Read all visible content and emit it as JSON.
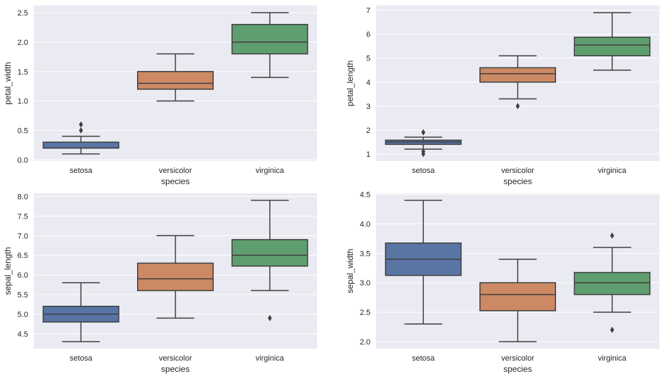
{
  "chart_data": [
    {
      "type": "box",
      "xlabel": "species",
      "ylabel": "petal_width",
      "categories": [
        "setosa",
        "versicolor",
        "virginica"
      ],
      "ylim": [
        -0.02,
        2.62
      ],
      "yticks": [
        "0.0",
        "0.5",
        "1.0",
        "1.5",
        "2.0",
        "2.5"
      ],
      "grid": true,
      "boxes": [
        {
          "whisker_low": 0.1,
          "q1": 0.2,
          "median": 0.2,
          "q3": 0.3,
          "whisker_high": 0.4,
          "outliers": [
            0.5,
            0.6
          ]
        },
        {
          "whisker_low": 1.0,
          "q1": 1.2,
          "median": 1.3,
          "q3": 1.5,
          "whisker_high": 1.8,
          "outliers": []
        },
        {
          "whisker_low": 1.4,
          "q1": 1.8,
          "median": 2.0,
          "q3": 2.3,
          "whisker_high": 2.5,
          "outliers": []
        }
      ]
    },
    {
      "type": "box",
      "xlabel": "species",
      "ylabel": "petal_length",
      "categories": [
        "setosa",
        "versicolor",
        "virginica"
      ],
      "ylim": [
        0.705,
        7.195
      ],
      "yticks": [
        "1",
        "2",
        "3",
        "4",
        "5",
        "6",
        "7"
      ],
      "grid": true,
      "boxes": [
        {
          "whisker_low": 1.2,
          "q1": 1.4,
          "median": 1.5,
          "q3": 1.575,
          "whisker_high": 1.7,
          "outliers": [
            1.0,
            1.1,
            1.9
          ]
        },
        {
          "whisker_low": 3.3,
          "q1": 4.0,
          "median": 4.35,
          "q3": 4.6,
          "whisker_high": 5.1,
          "outliers": [
            3.0
          ]
        },
        {
          "whisker_low": 4.5,
          "q1": 5.1,
          "median": 5.55,
          "q3": 5.875,
          "whisker_high": 6.9,
          "outliers": []
        }
      ]
    },
    {
      "type": "box",
      "xlabel": "species",
      "ylabel": "sepal_length",
      "categories": [
        "setosa",
        "versicolor",
        "virginica"
      ],
      "ylim": [
        4.12,
        8.08
      ],
      "yticks": [
        "4.5",
        "5.0",
        "5.5",
        "6.0",
        "6.5",
        "7.0",
        "7.5",
        "8.0"
      ],
      "grid": true,
      "boxes": [
        {
          "whisker_low": 4.3,
          "q1": 4.8,
          "median": 5.0,
          "q3": 5.2,
          "whisker_high": 5.8,
          "outliers": []
        },
        {
          "whisker_low": 4.9,
          "q1": 5.6,
          "median": 5.9,
          "q3": 6.3,
          "whisker_high": 7.0,
          "outliers": []
        },
        {
          "whisker_low": 5.6,
          "q1": 6.225,
          "median": 6.5,
          "q3": 6.9,
          "whisker_high": 7.9,
          "outliers": [
            4.9
          ]
        }
      ]
    },
    {
      "type": "box",
      "xlabel": "species",
      "ylabel": "sepal_width",
      "categories": [
        "setosa",
        "versicolor",
        "virginica"
      ],
      "ylim": [
        1.88,
        4.52
      ],
      "yticks": [
        "2.0",
        "2.5",
        "3.0",
        "3.5",
        "4.0",
        "4.5"
      ],
      "grid": true,
      "boxes": [
        {
          "whisker_low": 2.3,
          "q1": 3.125,
          "median": 3.4,
          "q3": 3.675,
          "whisker_high": 4.4,
          "outliers": []
        },
        {
          "whisker_low": 2.0,
          "q1": 2.525,
          "median": 2.8,
          "q3": 3.0,
          "whisker_high": 3.4,
          "outliers": []
        },
        {
          "whisker_low": 2.5,
          "q1": 2.8,
          "median": 3.0,
          "q3": 3.175,
          "whisker_high": 3.6,
          "outliers": [
            2.2,
            3.8
          ]
        }
      ]
    }
  ],
  "colors": {
    "background": "#eaeaf2",
    "grid": "#ffffff",
    "lines": "#3f3f3f",
    "boxes": [
      "#5875a4",
      "#cc8963",
      "#5f9e6e"
    ]
  }
}
